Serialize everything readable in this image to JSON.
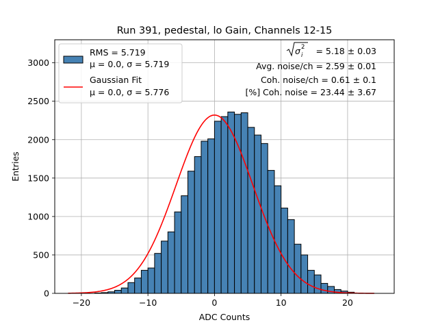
{
  "chart_data": {
    "type": "bar",
    "title": "Run 391, pedestal, lo Gain, Channels 12-15",
    "xlabel": "ADC Counts",
    "ylabel": "Entries",
    "xlim": [
      -24,
      27
    ],
    "ylim": [
      0,
      3300
    ],
    "grid": true,
    "legend_position": "top-left",
    "bin_width": 1,
    "x_ticks": [
      "−20",
      "−10",
      "0",
      "10",
      "20"
    ],
    "x_tick_values": [
      -20,
      -10,
      0,
      10,
      20
    ],
    "y_ticks": [
      "0",
      "500",
      "1000",
      "1500",
      "2000",
      "2500",
      "3000"
    ],
    "y_tick_values": [
      0,
      500,
      1000,
      1500,
      2000,
      2500,
      3000
    ],
    "histogram": {
      "name": "RMS",
      "color": "#4682b4",
      "edge_color": "#000000",
      "bin_edges_start": -18,
      "values": [
        5,
        10,
        20,
        40,
        70,
        140,
        200,
        300,
        330,
        520,
        680,
        800,
        1060,
        1270,
        1590,
        1780,
        1980,
        2010,
        2240,
        2300,
        2360,
        2330,
        2350,
        2160,
        2060,
        1950,
        1600,
        1400,
        1110,
        960,
        640,
        500,
        300,
        240,
        130,
        90,
        50,
        30,
        15
      ]
    },
    "gaussian_fit": {
      "name": "Gaussian Fit",
      "color": "#ff0000",
      "mu": 0.0,
      "sigma": 5.776,
      "amplitude": 2320,
      "x_range": [
        -22,
        24
      ]
    },
    "legend": [
      {
        "line1": "RMS = 5.719",
        "line2": "μ = 0.0, σ = 5.719",
        "kind": "patch"
      },
      {
        "line1": "Gaussian Fit",
        "line2": "μ = 0.0, σ = 5.776",
        "kind": "line"
      }
    ],
    "annotations": {
      "sigma_prefix": "σ",
      "sigma_sub": "i",
      "sigma_sup": "2",
      "sigma_value": " = 5.18 ± 0.03",
      "avg_noise": "Avg. noise/ch = 2.59 ± 0.01",
      "coh_noise": "Coh. noise/ch = 0.61 ± 0.1",
      "pct_coh_noise": "[%] Coh. noise = 23.44 ± 3.67"
    }
  }
}
